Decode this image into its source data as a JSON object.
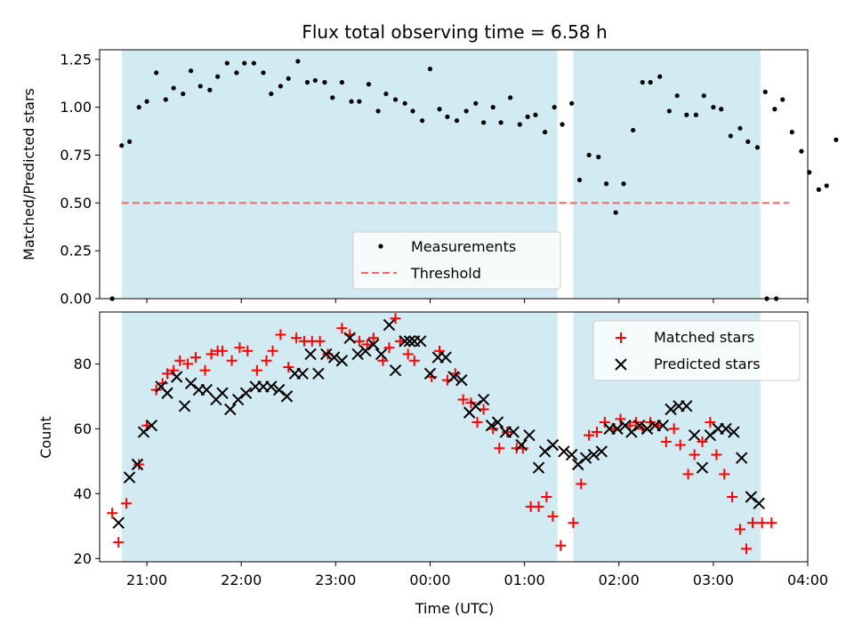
{
  "title": "Flux total observing time = 6.58 h",
  "colors": {
    "span": "#add8e6",
    "measure": "#000000",
    "threshold": "#ff6666",
    "matched": "#ff0000",
    "predicted": "#000000"
  },
  "chart_data": [
    {
      "type": "scatter",
      "ylabel": "Matched/Predicted stars",
      "xlim": [
        "20:30",
        "04:00"
      ],
      "ylim": [
        0,
        1.3
      ],
      "yticks": [
        "0.00",
        "0.25",
        "0.50",
        "0.75",
        "1.00",
        "1.25"
      ],
      "grid": false,
      "legend": {
        "position": "lower-center",
        "entries": [
          {
            "label": "Measurements",
            "marker": "dot"
          },
          {
            "label": "Threshold",
            "marker": "dashed-line"
          }
        ]
      },
      "observing_windows": [
        [
          "20:44",
          "01:21"
        ],
        [
          "01:31",
          "03:30"
        ]
      ],
      "threshold": 0.5,
      "measurements": [
        [
          "20:38",
          0.0
        ],
        [
          "20:44",
          0.8
        ],
        [
          "20:49",
          0.82
        ],
        [
          "20:55",
          1.0
        ],
        [
          "21:00",
          1.03
        ],
        [
          "21:06",
          1.18
        ],
        [
          "21:12",
          1.04
        ],
        [
          "21:17",
          1.1
        ],
        [
          "21:23",
          1.07
        ],
        [
          "21:28",
          1.19
        ],
        [
          "21:34",
          1.11
        ],
        [
          "21:40",
          1.09
        ],
        [
          "21:45",
          1.16
        ],
        [
          "21:51",
          1.23
        ],
        [
          "21:57",
          1.18
        ],
        [
          "22:02",
          1.23
        ],
        [
          "22:08",
          1.23
        ],
        [
          "22:14",
          1.18
        ],
        [
          "22:19",
          1.07
        ],
        [
          "22:25",
          1.11
        ],
        [
          "22:30",
          1.15
        ],
        [
          "22:36",
          1.24
        ],
        [
          "22:42",
          1.13
        ],
        [
          "22:47",
          1.14
        ],
        [
          "22:53",
          1.13
        ],
        [
          "22:58",
          1.05
        ],
        [
          "23:04",
          1.13
        ],
        [
          "23:10",
          1.03
        ],
        [
          "23:15",
          1.03
        ],
        [
          "23:21",
          1.12
        ],
        [
          "23:27",
          0.98
        ],
        [
          "23:32",
          1.07
        ],
        [
          "23:38",
          1.04
        ],
        [
          "23:44",
          1.02
        ],
        [
          "23:49",
          0.98
        ],
        [
          "23:55",
          0.93
        ],
        [
          "00:00",
          1.2
        ],
        [
          "00:06",
          0.99
        ],
        [
          "00:11",
          0.95
        ],
        [
          "00:17",
          0.93
        ],
        [
          "00:23",
          0.98
        ],
        [
          "00:29",
          1.02
        ],
        [
          "00:34",
          0.92
        ],
        [
          "00:40",
          1.0
        ],
        [
          "00:45",
          0.92
        ],
        [
          "00:51",
          1.05
        ],
        [
          "00:57",
          0.91
        ],
        [
          "01:02",
          0.95
        ],
        [
          "01:07",
          0.96
        ],
        [
          "01:13",
          0.87
        ],
        [
          "01:19",
          1.0
        ],
        [
          "01:24",
          0.91
        ],
        [
          "01:30",
          1.02
        ],
        [
          "01:35",
          0.62
        ],
        [
          "01:41",
          0.75
        ],
        [
          "01:47",
          0.74
        ],
        [
          "01:52",
          0.6
        ],
        [
          "01:58",
          0.45
        ],
        [
          "02:03",
          0.6
        ],
        [
          "02:09",
          0.88
        ],
        [
          "02:15",
          1.13
        ],
        [
          "02:20",
          1.13
        ],
        [
          "02:26",
          1.16
        ],
        [
          "02:32",
          0.98
        ],
        [
          "02:37",
          1.06
        ],
        [
          "02:43",
          0.96
        ],
        [
          "02:49",
          0.96
        ],
        [
          "02:54",
          1.06
        ],
        [
          "03:00",
          1.0
        ],
        [
          "03:05",
          0.99
        ],
        [
          "03:11",
          0.85
        ],
        [
          "03:17",
          0.89
        ],
        [
          "03:22",
          0.82
        ],
        [
          "03:28",
          0.79
        ],
        [
          "03:33",
          1.08
        ],
        [
          "03:39",
          0.99
        ],
        [
          "03:44",
          1.04
        ],
        [
          "03:50",
          0.87
        ],
        [
          "03:56",
          0.77
        ],
        [
          "04:01",
          0.66
        ],
        [
          "04:07",
          0.57
        ],
        [
          "04:12",
          0.59
        ],
        [
          "04:18",
          0.83
        ],
        [
          "03:34",
          0.0
        ],
        [
          "03:40",
          0.0
        ]
      ]
    },
    {
      "type": "scatter",
      "xlabel": "Time (UTC)",
      "ylabel": "Count",
      "xlim": [
        "20:30",
        "04:00"
      ],
      "ylim": [
        19,
        96
      ],
      "xticks": [
        "21:00",
        "22:00",
        "23:00",
        "00:00",
        "01:00",
        "02:00",
        "03:00",
        "04:00"
      ],
      "yticks": [
        "20",
        "40",
        "60",
        "80"
      ],
      "grid": false,
      "legend": {
        "position": "top-right",
        "entries": [
          {
            "label": "Matched stars",
            "marker": "plus"
          },
          {
            "label": "Predicted stars",
            "marker": "x"
          }
        ]
      },
      "observing_windows": [
        [
          "20:44",
          "01:21"
        ],
        [
          "01:31",
          "03:30"
        ]
      ],
      "series": [
        {
          "name": "Matched stars",
          "points": [
            [
              "20:38",
              34
            ],
            [
              "20:42",
              25
            ],
            [
              "20:47",
              37
            ],
            [
              "20:55",
              49
            ],
            [
              "21:00",
              61
            ],
            [
              "21:06",
              72
            ],
            [
              "21:10",
              74
            ],
            [
              "21:13",
              77
            ],
            [
              "21:17",
              78
            ],
            [
              "21:21",
              81
            ],
            [
              "21:26",
              80
            ],
            [
              "21:31",
              82
            ],
            [
              "21:37",
              78
            ],
            [
              "21:41",
              83
            ],
            [
              "21:45",
              84
            ],
            [
              "21:48",
              84
            ],
            [
              "21:54",
              81
            ],
            [
              "21:59",
              85
            ],
            [
              "22:04",
              84
            ],
            [
              "22:10",
              78
            ],
            [
              "22:16",
              81
            ],
            [
              "22:20",
              84
            ],
            [
              "22:25",
              89
            ],
            [
              "22:30",
              79
            ],
            [
              "22:35",
              88
            ],
            [
              "22:40",
              87
            ],
            [
              "22:45",
              87
            ],
            [
              "22:50",
              87
            ],
            [
              "22:55",
              83
            ],
            [
              "23:04",
              91
            ],
            [
              "23:09",
              89
            ],
            [
              "23:15",
              87
            ],
            [
              "23:20",
              86
            ],
            [
              "23:24",
              88
            ],
            [
              "23:30",
              81
            ],
            [
              "23:34",
              85
            ],
            [
              "23:38",
              94
            ],
            [
              "23:41",
              87
            ],
            [
              "23:46",
              83
            ],
            [
              "23:50",
              81
            ],
            [
              "00:01",
              76
            ],
            [
              "00:06",
              84
            ],
            [
              "00:11",
              75
            ],
            [
              "00:16",
              77
            ],
            [
              "00:21",
              69
            ],
            [
              "00:26",
              68
            ],
            [
              "00:30",
              62
            ],
            [
              "00:34",
              66
            ],
            [
              "00:40",
              60
            ],
            [
              "00:44",
              54
            ],
            [
              "00:49",
              59
            ],
            [
              "00:55",
              54
            ],
            [
              "00:59",
              54
            ],
            [
              "01:04",
              36
            ],
            [
              "01:09",
              36
            ],
            [
              "01:14",
              39
            ],
            [
              "01:18",
              33
            ],
            [
              "01:23",
              24
            ],
            [
              "01:31",
              31
            ],
            [
              "01:36",
              43
            ],
            [
              "01:41",
              58
            ],
            [
              "01:46",
              59
            ],
            [
              "01:51",
              62
            ],
            [
              "01:57",
              60
            ],
            [
              "02:01",
              63
            ],
            [
              "02:07",
              61
            ],
            [
              "02:11",
              62
            ],
            [
              "02:15",
              60
            ],
            [
              "02:20",
              62
            ],
            [
              "02:25",
              61
            ],
            [
              "02:30",
              56
            ],
            [
              "02:35",
              60
            ],
            [
              "02:39",
              55
            ],
            [
              "02:44",
              46
            ],
            [
              "02:48",
              52
            ],
            [
              "02:53",
              56
            ],
            [
              "02:58",
              62
            ],
            [
              "03:02",
              52
            ],
            [
              "03:07",
              46
            ],
            [
              "03:12",
              39
            ],
            [
              "03:17",
              29
            ],
            [
              "03:21",
              23
            ],
            [
              "03:25",
              31
            ],
            [
              "03:31",
              31
            ],
            [
              "03:37",
              31
            ]
          ]
        },
        {
          "name": "Predicted stars",
          "points": [
            [
              "20:42",
              31
            ],
            [
              "20:49",
              45
            ],
            [
              "20:54",
              49
            ],
            [
              "20:58",
              59
            ],
            [
              "21:03",
              61
            ],
            [
              "21:09",
              73
            ],
            [
              "21:13",
              71
            ],
            [
              "21:19",
              76
            ],
            [
              "21:24",
              67
            ],
            [
              "21:28",
              74
            ],
            [
              "21:33",
              72
            ],
            [
              "21:38",
              72
            ],
            [
              "21:44",
              69
            ],
            [
              "21:48",
              71
            ],
            [
              "21:53",
              66
            ],
            [
              "21:58",
              69
            ],
            [
              "22:03",
              71
            ],
            [
              "22:09",
              73
            ],
            [
              "22:14",
              73
            ],
            [
              "22:19",
              73
            ],
            [
              "22:24",
              72
            ],
            [
              "22:29",
              70
            ],
            [
              "22:34",
              77
            ],
            [
              "22:39",
              77
            ],
            [
              "22:44",
              83
            ],
            [
              "22:49",
              77
            ],
            [
              "22:54",
              83
            ],
            [
              "22:59",
              82
            ],
            [
              "23:04",
              81
            ],
            [
              "23:09",
              88
            ],
            [
              "23:14",
              83
            ],
            [
              "23:19",
              84
            ],
            [
              "23:24",
              86
            ],
            [
              "23:29",
              83
            ],
            [
              "23:34",
              92
            ],
            [
              "23:38",
              78
            ],
            [
              "23:44",
              87
            ],
            [
              "23:47",
              87
            ],
            [
              "23:50",
              87
            ],
            [
              "23:54",
              87
            ],
            [
              "00:00",
              77
            ],
            [
              "00:05",
              82
            ],
            [
              "00:10",
              82
            ],
            [
              "00:15",
              76
            ],
            [
              "00:20",
              75
            ],
            [
              "00:25",
              65
            ],
            [
              "00:29",
              67
            ],
            [
              "00:34",
              69
            ],
            [
              "00:39",
              61
            ],
            [
              "00:43",
              62
            ],
            [
              "00:48",
              59
            ],
            [
              "00:53",
              59
            ],
            [
              "00:58",
              55
            ],
            [
              "01:03",
              58
            ],
            [
              "01:09",
              48
            ],
            [
              "01:13",
              53
            ],
            [
              "01:18",
              55
            ],
            [
              "01:25",
              53
            ],
            [
              "01:30",
              52
            ],
            [
              "01:34",
              49
            ],
            [
              "01:39",
              51
            ],
            [
              "01:44",
              52
            ],
            [
              "01:49",
              53
            ],
            [
              "01:54",
              60
            ],
            [
              "01:59",
              60
            ],
            [
              "02:04",
              61
            ],
            [
              "02:08",
              59
            ],
            [
              "02:13",
              61
            ],
            [
              "02:18",
              60
            ],
            [
              "02:23",
              61
            ],
            [
              "02:28",
              61
            ],
            [
              "02:33",
              66
            ],
            [
              "02:38",
              67
            ],
            [
              "02:43",
              67
            ],
            [
              "02:48",
              58
            ],
            [
              "02:53",
              48
            ],
            [
              "02:58",
              58
            ],
            [
              "03:03",
              60
            ],
            [
              "03:08",
              60
            ],
            [
              "03:13",
              59
            ],
            [
              "03:18",
              51
            ],
            [
              "03:24",
              39
            ],
            [
              "03:29",
              37
            ]
          ]
        }
      ]
    }
  ]
}
